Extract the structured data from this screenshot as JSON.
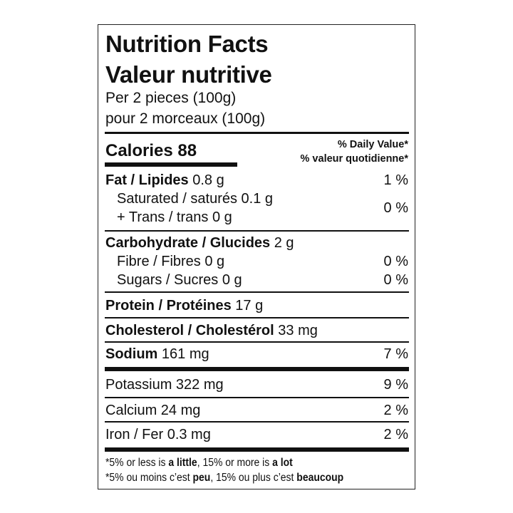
{
  "title_en": "Nutrition Facts",
  "title_fr": "Valeur nutritive",
  "serving_en": "Per 2 pieces (100g)",
  "serving_fr": "pour 2 morceaux (100g)",
  "calories": {
    "label": "Calories 88"
  },
  "dv_header": {
    "en": "% Daily Value*",
    "fr": "% valeur quotidienne*"
  },
  "rows": {
    "fat": {
      "label": "Fat / Lipides",
      "amount": "0.8 g",
      "dv": "1 %"
    },
    "saturated": {
      "label": "Saturated / saturés 0.1 g"
    },
    "trans": {
      "label": "+ Trans / trans 0 g"
    },
    "sat_trans_dv": "0 %",
    "carb": {
      "label": "Carbohydrate / Glucides",
      "amount": "2 g"
    },
    "fibre": {
      "label": "Fibre / Fibres 0 g",
      "dv": "0 %"
    },
    "sugars": {
      "label": "Sugars / Sucres 0 g",
      "dv": "0 %"
    },
    "protein": {
      "label": "Protein / Protéines",
      "amount": "17 g"
    },
    "cholesterol": {
      "label": "Cholesterol / Cholestérol",
      "amount": "33 mg"
    },
    "sodium": {
      "label": "Sodium",
      "amount": "161 mg",
      "dv": "7 %"
    },
    "potassium": {
      "label": "Potassium 322 mg",
      "dv": "9 %"
    },
    "calcium": {
      "label": "Calcium 24 mg",
      "dv": "2 %"
    },
    "iron": {
      "label": "Iron / Fer 0.3 mg",
      "dv": "2 %"
    }
  },
  "footnote_en": {
    "a": "*5% or less is ",
    "b": "a little",
    "c": ", 15% or more is ",
    "d": "a lot"
  },
  "footnote_fr": {
    "a": "*5% ou moins c’est ",
    "b": "peu",
    "c": ", 15% ou plus c’est ",
    "d": "beaucoup"
  }
}
